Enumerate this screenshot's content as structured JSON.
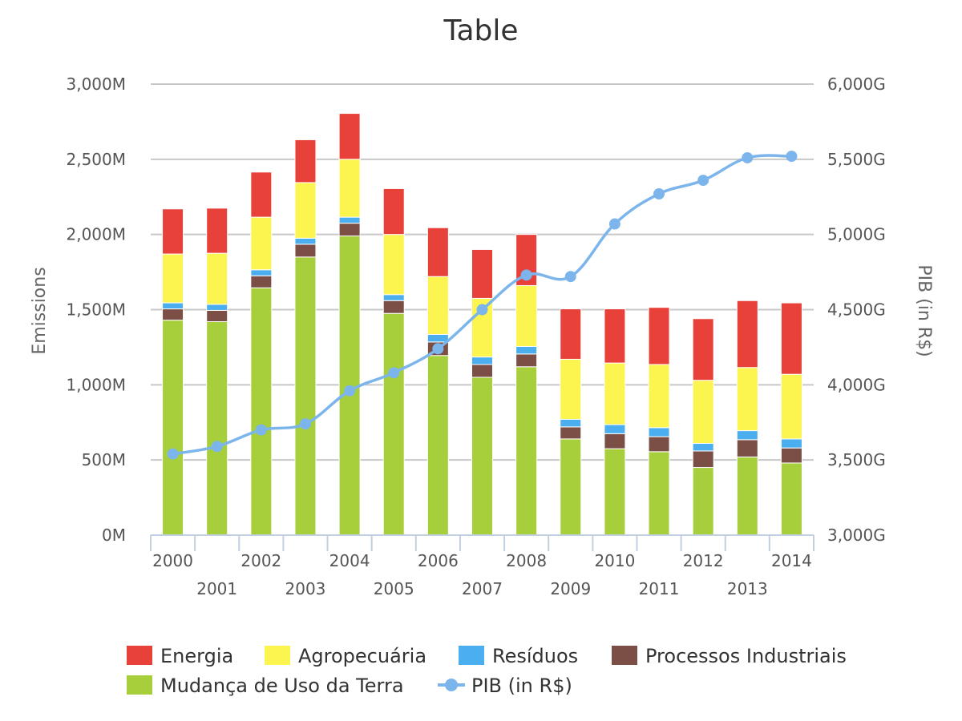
{
  "chart_data": {
    "type": "bar",
    "stacked": true,
    "title": "Table",
    "categories": [
      "2000",
      "2001",
      "2002",
      "2003",
      "2004",
      "2005",
      "2006",
      "2007",
      "2008",
      "2009",
      "2010",
      "2011",
      "2012",
      "2013",
      "2014"
    ],
    "series": [
      {
        "name": "Mudança de Uso da Terra",
        "axis": "left",
        "color": "#a6cf3b",
        "values": [
          1430,
          1420,
          1645,
          1850,
          1990,
          1475,
          1195,
          1050,
          1120,
          640,
          575,
          555,
          450,
          520,
          480
        ]
      },
      {
        "name": "Processos Industriais",
        "axis": "left",
        "color": "#7b4f45",
        "values": [
          75,
          75,
          80,
          85,
          85,
          85,
          90,
          85,
          85,
          80,
          100,
          100,
          110,
          115,
          100
        ]
      },
      {
        "name": "Resíduos",
        "axis": "left",
        "color": "#4baeef",
        "values": [
          40,
          40,
          40,
          40,
          40,
          40,
          50,
          50,
          50,
          50,
          60,
          60,
          50,
          60,
          60
        ]
      },
      {
        "name": "Agropecuária",
        "axis": "left",
        "color": "#fcf44f",
        "values": [
          325,
          340,
          350,
          370,
          385,
          400,
          385,
          390,
          405,
          400,
          410,
          420,
          420,
          420,
          430
        ]
      },
      {
        "name": "Energia",
        "axis": "left",
        "color": "#e8413a",
        "values": [
          300,
          300,
          300,
          285,
          305,
          305,
          325,
          325,
          340,
          335,
          360,
          380,
          410,
          445,
          475
        ]
      },
      {
        "name": "PIB (in R$)",
        "axis": "right",
        "type": "line",
        "color": "#7cb5ec",
        "values": [
          3540,
          3590,
          3700,
          3740,
          3960,
          4080,
          4240,
          4500,
          4730,
          4720,
          5070,
          5270,
          5360,
          5510,
          5520
        ]
      }
    ],
    "legend_order": [
      "Energia",
      "Agropecuária",
      "Resíduos",
      "Processos Industriais",
      "Mudança de Uso da Terra",
      "PIB (in R$)"
    ],
    "legend_position": "bottom",
    "yaxis_left": {
      "label": "Emissions",
      "min": 0,
      "max": 3000,
      "ticks": [
        0,
        500,
        1000,
        1500,
        2000,
        2500,
        3000
      ],
      "tick_labels": [
        "0M",
        "500M",
        "1,000M",
        "1,500M",
        "2,000M",
        "2,500M",
        "3,000M"
      ]
    },
    "yaxis_right": {
      "label": "PIB (in R$)",
      "min": 3000,
      "max": 6000,
      "ticks": [
        3000,
        3500,
        4000,
        4500,
        5000,
        5500,
        6000
      ],
      "tick_labels": [
        "3,000G",
        "3,500G",
        "4,000G",
        "4,500G",
        "5,000G",
        "5,500G",
        "6,000G"
      ]
    },
    "grid": true
  },
  "colors": {
    "grid": "#c8c8c8",
    "axis": "#c0d0e0",
    "bar_stroke": "#ffffff"
  }
}
